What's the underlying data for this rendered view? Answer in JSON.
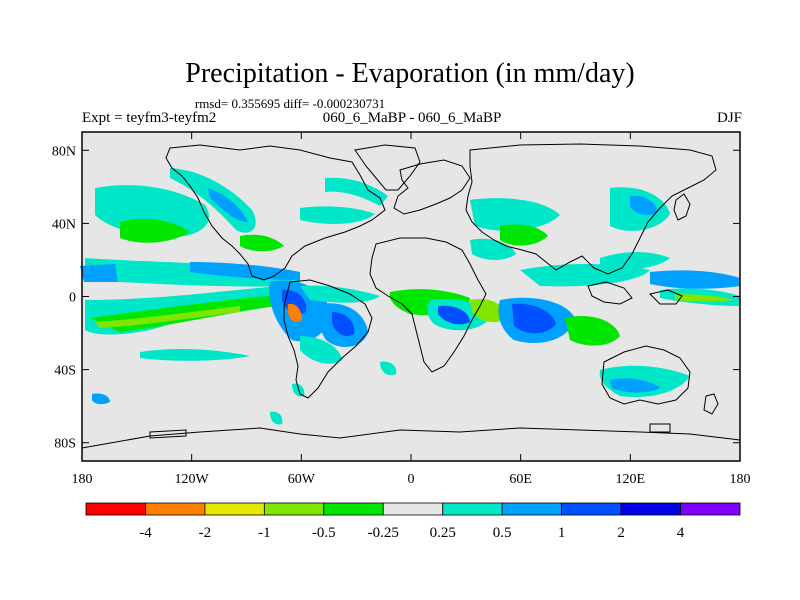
{
  "title": "Precipitation - Evaporation (in mm/day)",
  "stats_line": "rmsd= 0.355695  diff= -0.000230731",
  "experiment_label": "Expt = teyfm3-teyfm2",
  "run_label": "060_6_MaBP - 060_6_MaBP",
  "season_label": "DJF",
  "map": {
    "projection": "cylindrical-equidistant",
    "lon_range": [
      -180,
      180
    ],
    "lat_range": [
      -90,
      90
    ],
    "x_ticks": [
      {
        "lon": -180,
        "label": "180"
      },
      {
        "lon": -120,
        "label": "120W"
      },
      {
        "lon": -60,
        "label": "60W"
      },
      {
        "lon": 0,
        "label": "0"
      },
      {
        "lon": 60,
        "label": "60E"
      },
      {
        "lon": 120,
        "label": "120E"
      },
      {
        "lon": 180,
        "label": "180"
      }
    ],
    "y_ticks": [
      {
        "lat": 80,
        "label": "80N"
      },
      {
        "lat": 40,
        "label": "40N"
      },
      {
        "lat": 0,
        "label": "0"
      },
      {
        "lat": -40,
        "label": "40S"
      },
      {
        "lat": -80,
        "label": "80S"
      }
    ],
    "background_color": "#e6e6e6",
    "coastline_color": "#000000"
  },
  "legend": {
    "colors": [
      "#ff0000",
      "#ff7f00",
      "#e6e600",
      "#80e600",
      "#00e600",
      "#e6e6e6",
      "#00e6c8",
      "#00a0ff",
      "#0050ff",
      "#0000e6",
      "#7f00ff"
    ],
    "labels": [
      "-4",
      "-2",
      "-1",
      "-0.5",
      "-0.25",
      "0.25",
      "0.5",
      "1",
      "2",
      "4"
    ]
  }
}
